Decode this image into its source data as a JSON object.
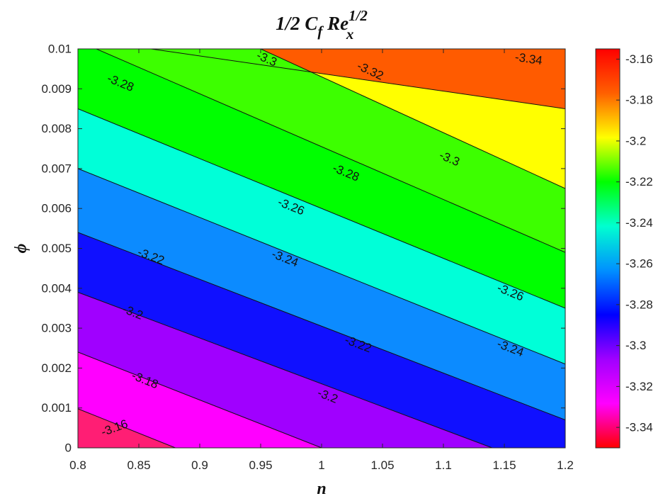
{
  "chart_data": {
    "type": "contour",
    "title": {
      "base": "1/2 C",
      "sub": "f",
      "mid": " Re",
      "sup": "1/2",
      "sub2": "x"
    },
    "xlabel": "n",
    "ylabel": "ϕ",
    "xlim": [
      0.8,
      1.2
    ],
    "ylim": [
      0,
      0.01
    ],
    "x_ticks": [
      "0.8",
      "0.85",
      "0.9",
      "0.95",
      "1",
      "1.05",
      "1.1",
      "1.15",
      "1.2"
    ],
    "y_ticks": [
      "0",
      "0.001",
      "0.002",
      "0.003",
      "0.004",
      "0.005",
      "0.006",
      "0.007",
      "0.008",
      "0.009",
      "0.01"
    ],
    "contour_levels": [
      -3.34,
      -3.32,
      -3.3,
      -3.28,
      -3.26,
      -3.24,
      -3.22,
      -3.2,
      -3.18,
      -3.16
    ],
    "contour_lines": [
      {
        "level": -3.34,
        "x": [
          0.86,
          1.2
        ],
        "y": [
          0.01,
          0.0085
        ]
      },
      {
        "level": -3.32,
        "x": [
          0.95,
          1.2
        ],
        "y": [
          0.01,
          0.0065
        ]
      },
      {
        "level": -3.3,
        "x": [
          0.8,
          1.2
        ],
        "y": [
          0.0102,
          0.0049
        ]
      },
      {
        "level": -3.28,
        "x": [
          0.8,
          1.2
        ],
        "y": [
          0.0085,
          0.0035
        ]
      },
      {
        "level": -3.26,
        "x": [
          0.8,
          1.2
        ],
        "y": [
          0.007,
          0.0021
        ]
      },
      {
        "level": -3.24,
        "x": [
          0.8,
          1.2
        ],
        "y": [
          0.0054,
          0.0007
        ]
      },
      {
        "level": -3.22,
        "x": [
          0.8,
          1.14
        ],
        "y": [
          0.0039,
          0.0
        ]
      },
      {
        "level": -3.2,
        "x": [
          0.8,
          1.0
        ],
        "y": [
          0.0024,
          0.0
        ]
      },
      {
        "level": -3.18,
        "x": [
          0.8,
          0.88
        ],
        "y": [
          0.00098,
          0.0
        ]
      }
    ],
    "contour_labels": [
      {
        "text": "-3.34",
        "x": 1.17,
        "y": 0.00975
      },
      {
        "text": "-3.32",
        "x": 1.04,
        "y": 0.00945
      },
      {
        "text": "-3.3",
        "x": 0.955,
        "y": 0.00975
      },
      {
        "text": "-3.3",
        "x": 1.105,
        "y": 0.00725
      },
      {
        "text": "-3.28",
        "x": 0.835,
        "y": 0.00915
      },
      {
        "text": "-3.28",
        "x": 1.02,
        "y": 0.0069
      },
      {
        "text": "-3.26",
        "x": 0.975,
        "y": 0.00605
      },
      {
        "text": "-3.26",
        "x": 1.155,
        "y": 0.0039
      },
      {
        "text": "-3.24",
        "x": 0.97,
        "y": 0.00475
      },
      {
        "text": "-3.24",
        "x": 1.155,
        "y": 0.0025
      },
      {
        "text": "-3.22",
        "x": 0.86,
        "y": 0.0048
      },
      {
        "text": "-3.22",
        "x": 1.03,
        "y": 0.0026
      },
      {
        "text": "-3.2",
        "x": 0.845,
        "y": 0.0034
      },
      {
        "text": "-3.2",
        "x": 1.005,
        "y": 0.0013
      },
      {
        "text": "-3.18",
        "x": 0.855,
        "y": 0.0017
      },
      {
        "text": "-3.16",
        "x": 0.83,
        "y": 0.0005
      }
    ],
    "colorbar": {
      "min": -3.35,
      "max": -3.155,
      "ticks": [
        "-3.16",
        "-3.18",
        "-3.2",
        "-3.22",
        "-3.24",
        "-3.26",
        "-3.28",
        "-3.3",
        "-3.32",
        "-3.34"
      ],
      "colormap": [
        "#ff0000",
        "#ff6000",
        "#ffff00",
        "#00ff00",
        "#00ffd0",
        "#0090ff",
        "#0000ff",
        "#a000ff",
        "#ff00ff",
        "#ff0000"
      ]
    },
    "band_colors": [
      "#ff5b00",
      "#ffff00",
      "#3dff00",
      "#00ff00",
      "#00ffd8",
      "#0c8bff",
      "#1010ff",
      "#a000ff",
      "#ff00ff",
      "#ff1e74",
      "#ff0000"
    ],
    "grid": false
  }
}
